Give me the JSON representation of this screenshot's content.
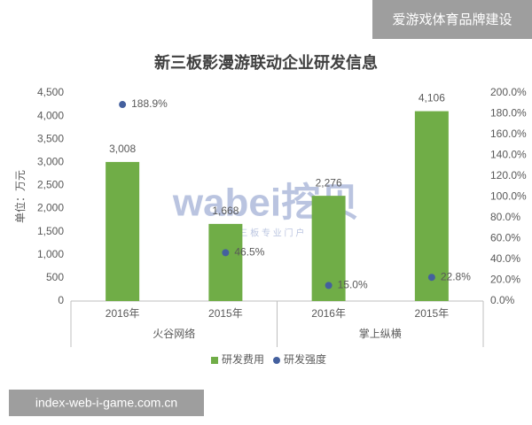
{
  "banner": "爱游戏体育品牌建设",
  "footer": "index-web-i-game.com.cn",
  "watermark": {
    "logo": "wabei挖贝",
    "tagline": "新 三 板 专 业 门 户"
  },
  "chart_data": {
    "type": "bar",
    "title": "新三板影漫游联动企业研发信息",
    "y_label": "单位：万元",
    "categories": [
      "2016年",
      "2015年",
      "2016年",
      "2015年"
    ],
    "groups": [
      "火谷网络",
      "掌上纵横"
    ],
    "series": [
      {
        "name": "研发费用",
        "type": "bar",
        "color": "#70ad47",
        "values": [
          3008,
          1668,
          2276,
          4106
        ],
        "value_labels": [
          "3,008",
          "1,668",
          "2,276",
          "4,106"
        ]
      },
      {
        "name": "研发强度",
        "type": "scatter",
        "axis": "y2",
        "color": "#44609e",
        "values": [
          188.9,
          46.5,
          15.0,
          22.8
        ],
        "value_labels": [
          "188.9%",
          "46.5%",
          "15.0%",
          "22.8%"
        ]
      }
    ],
    "ylim": [
      0,
      4500
    ],
    "yticks": [
      0,
      500,
      {
        "value": 1000,
        "label": "1,000"
      },
      {
        "value": 1500,
        "label": "1,500"
      },
      {
        "value": 2000,
        "label": "2,000"
      },
      {
        "value": 2500,
        "label": "2,500"
      },
      {
        "value": 3000,
        "label": "3,000"
      },
      {
        "value": 3500,
        "label": "3,500"
      },
      {
        "value": 4000,
        "label": "4,000"
      },
      {
        "value": 4500,
        "label": "4,500"
      }
    ],
    "y2lim": [
      0,
      200
    ],
    "y2ticks": [
      {
        "value": 0,
        "label": "0.0%"
      },
      {
        "value": 20,
        "label": "20.0%"
      },
      {
        "value": 40,
        "label": "40.0%"
      },
      {
        "value": 60,
        "label": "60.0%"
      },
      {
        "value": 80,
        "label": "80.0%"
      },
      {
        "value": 100,
        "label": "100.0%"
      },
      {
        "value": 120,
        "label": "120.0%"
      },
      {
        "value": 140,
        "label": "140.0%"
      },
      {
        "value": 160,
        "label": "160.0%"
      },
      {
        "value": 180,
        "label": "180.0%"
      },
      {
        "value": 200,
        "label": "200.0%"
      }
    ],
    "grid": false,
    "legend": "bottom"
  }
}
